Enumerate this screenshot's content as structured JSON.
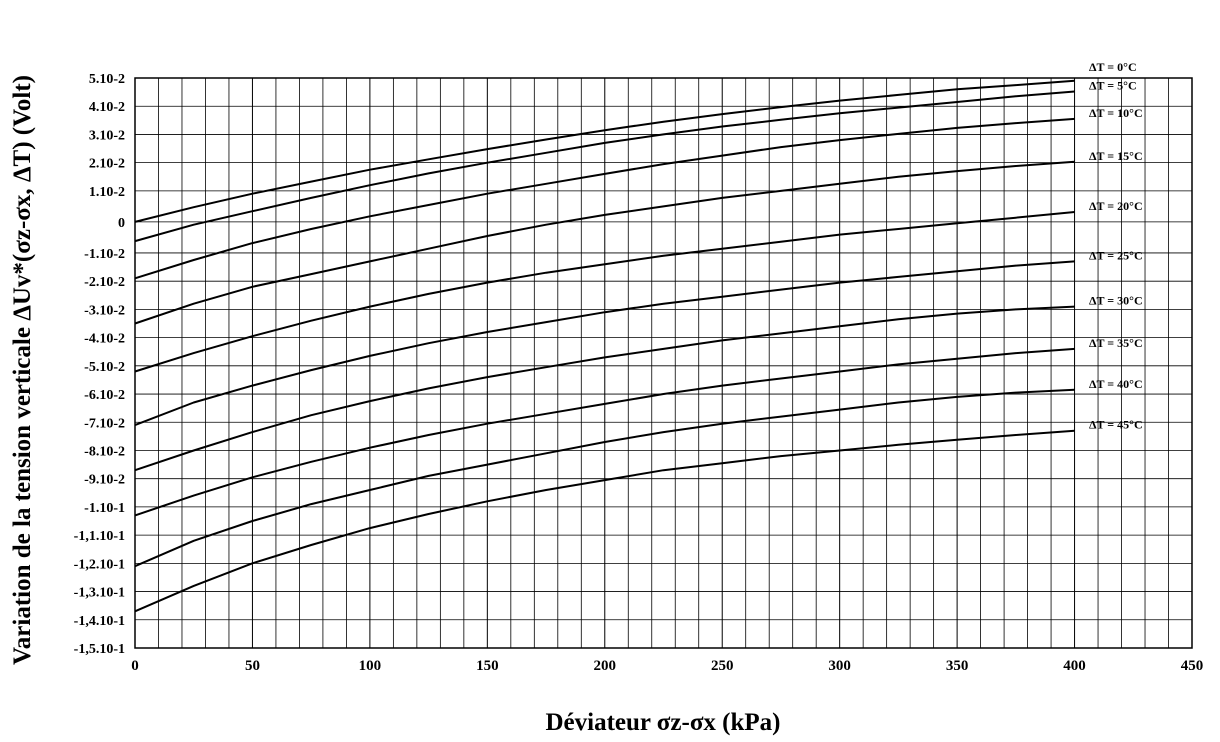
{
  "chart_data": {
    "type": "line",
    "xlabel": "Déviateur σz-σx (kPa)",
    "ylabel": "Variation de la tension verticale ΔUv*(σz-σx, ΔT) (Volt)",
    "xlim": [
      0,
      450
    ],
    "ylim": [
      -0.151,
      0.051
    ],
    "x_ticks": [
      0,
      50,
      100,
      150,
      200,
      250,
      300,
      350,
      400,
      450
    ],
    "y_ticks": [
      {
        "value": 0.051,
        "label": "5.10-2"
      },
      {
        "value": 0.041,
        "label": "4.10-2"
      },
      {
        "value": 0.031,
        "label": "3.10-2"
      },
      {
        "value": 0.021,
        "label": "2.10-2"
      },
      {
        "value": 0.011,
        "label": "1.10-2"
      },
      {
        "value": 0.0,
        "label": "0"
      },
      {
        "value": -0.011,
        "label": "-1.10-2"
      },
      {
        "value": -0.021,
        "label": "-2.10-2"
      },
      {
        "value": -0.031,
        "label": "-3.10-2"
      },
      {
        "value": -0.041,
        "label": "-4.10-2"
      },
      {
        "value": -0.051,
        "label": "-5.10-2"
      },
      {
        "value": -0.061,
        "label": "-6.10-2"
      },
      {
        "value": -0.071,
        "label": "-7.10-2"
      },
      {
        "value": -0.081,
        "label": "-8.10-2"
      },
      {
        "value": -0.091,
        "label": "-9.10-2"
      },
      {
        "value": -0.101,
        "label": "-1.10-1"
      },
      {
        "value": -0.111,
        "label": "-1,1.10-1"
      },
      {
        "value": -0.121,
        "label": "-1,2.10-1"
      },
      {
        "value": -0.131,
        "label": "-1,3.10-1"
      },
      {
        "value": -0.141,
        "label": "-1,4.10-1"
      },
      {
        "value": -0.151,
        "label": "-1,5.10-1"
      }
    ],
    "grid": true,
    "x": [
      0,
      25,
      50,
      75,
      100,
      125,
      150,
      175,
      200,
      225,
      250,
      275,
      300,
      325,
      350,
      375,
      400
    ],
    "series": [
      {
        "name": "ΔT = 0°C",
        "values": [
          0.0,
          0.0052,
          0.01,
          0.0143,
          0.0185,
          0.0222,
          0.0258,
          0.0292,
          0.0325,
          0.0355,
          0.0382,
          0.0407,
          0.043,
          0.045,
          0.047,
          0.0485,
          0.05
        ]
      },
      {
        "name": "ΔT = 5°C",
        "values": [
          -0.0068,
          -0.001,
          0.0038,
          0.0085,
          0.013,
          0.0172,
          0.021,
          0.0245,
          0.028,
          0.031,
          0.0338,
          0.0362,
          0.0385,
          0.0405,
          0.0425,
          0.0445,
          0.0462
        ]
      },
      {
        "name": "ΔT = 10°C",
        "values": [
          -0.02,
          -0.0135,
          -0.0075,
          -0.0025,
          0.002,
          0.006,
          0.01,
          0.0135,
          0.017,
          0.0205,
          0.0235,
          0.0265,
          0.029,
          0.0312,
          0.0333,
          0.035,
          0.0365
        ]
      },
      {
        "name": "ΔT = 15°C",
        "values": [
          -0.036,
          -0.029,
          -0.023,
          -0.0185,
          -0.014,
          -0.0095,
          -0.005,
          -0.001,
          0.0025,
          0.0055,
          0.0085,
          0.011,
          0.0135,
          0.016,
          0.018,
          0.0198,
          0.0213
        ]
      },
      {
        "name": "ΔT = 20°C",
        "values": [
          -0.053,
          -0.0465,
          -0.0405,
          -0.035,
          -0.03,
          -0.0255,
          -0.0215,
          -0.018,
          -0.015,
          -0.012,
          -0.0095,
          -0.007,
          -0.0045,
          -0.0025,
          -0.0005,
          0.0015,
          0.0035
        ]
      },
      {
        "name": "ΔT = 25°C",
        "values": [
          -0.072,
          -0.064,
          -0.058,
          -0.0525,
          -0.0475,
          -0.043,
          -0.039,
          -0.0355,
          -0.032,
          -0.029,
          -0.0265,
          -0.024,
          -0.0215,
          -0.0195,
          -0.0175,
          -0.0155,
          -0.014
        ]
      },
      {
        "name": "ΔT = 30°C",
        "values": [
          -0.088,
          -0.081,
          -0.0745,
          -0.0685,
          -0.0635,
          -0.059,
          -0.055,
          -0.0515,
          -0.048,
          -0.045,
          -0.042,
          -0.0395,
          -0.037,
          -0.0345,
          -0.0325,
          -0.031,
          -0.03
        ]
      },
      {
        "name": "ΔT = 35°C",
        "values": [
          -0.104,
          -0.097,
          -0.0905,
          -0.085,
          -0.08,
          -0.0755,
          -0.0715,
          -0.068,
          -0.0645,
          -0.061,
          -0.058,
          -0.0555,
          -0.053,
          -0.0505,
          -0.0485,
          -0.0465,
          -0.045
        ]
      },
      {
        "name": "ΔT = 40°C",
        "values": [
          -0.122,
          -0.113,
          -0.106,
          -0.1,
          -0.095,
          -0.09,
          -0.086,
          -0.082,
          -0.078,
          -0.0745,
          -0.0715,
          -0.069,
          -0.0665,
          -0.064,
          -0.062,
          -0.0605,
          -0.0595
        ]
      },
      {
        "name": "ΔT = 45°C",
        "values": [
          -0.138,
          -0.129,
          -0.121,
          -0.1145,
          -0.1085,
          -0.1035,
          -0.099,
          -0.095,
          -0.0915,
          -0.088,
          -0.0855,
          -0.083,
          -0.081,
          -0.079,
          -0.0772,
          -0.0755,
          -0.074
        ]
      }
    ]
  }
}
